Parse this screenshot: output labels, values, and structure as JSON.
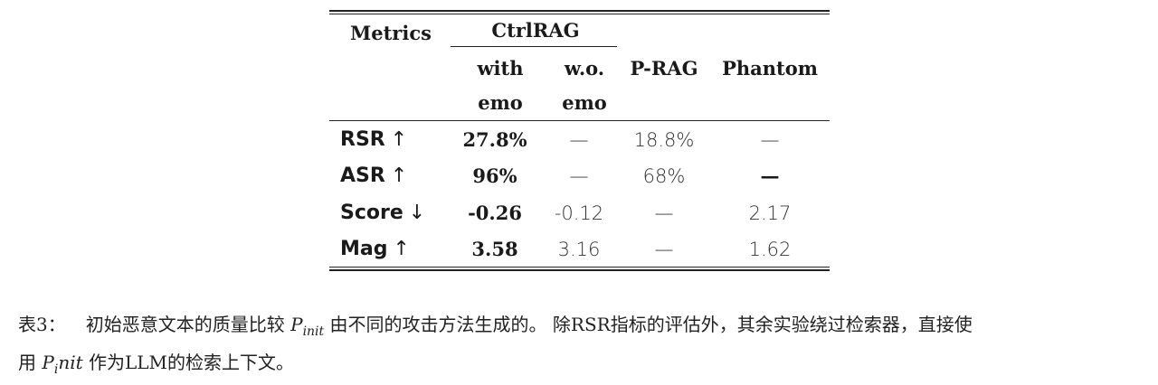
{
  "table": {
    "header": {
      "metrics": "Metrics",
      "ctrlrag": "CtrlRAG",
      "with_line1": "with",
      "with_line2": "emo",
      "wo_line1": "w.o.",
      "wo_line2": "emo",
      "prag": "P-RAG",
      "phantom": "Phantom"
    },
    "rows": [
      {
        "label": "RSR",
        "arrow": "↑",
        "with_emo": "27.8%",
        "wo_emo": "—",
        "prag": "18.8%",
        "phantom": "—"
      },
      {
        "label": "ASR",
        "arrow": "↑",
        "with_emo": "96%",
        "wo_emo": "—",
        "prag": "68%",
        "phantom": "—"
      },
      {
        "label": "Score",
        "arrow": "↓",
        "with_emo": "-0.26",
        "wo_emo": "-0.12",
        "prag": "—",
        "phantom": "2.17"
      },
      {
        "label": "Mag",
        "arrow": "↑",
        "with_emo": "3.58",
        "wo_emo": "3.16",
        "prag": "—",
        "phantom": "1.62"
      }
    ]
  },
  "caption": {
    "label": "表3：",
    "text_a": "初始恶意文本的质量比较",
    "pinit_base": "P",
    "pinit_sub": "init",
    "text_b": "由不同的攻击方法生成的。 除RSR指标的评估外，其余实验绕过检索器，直接使",
    "text_c": "用",
    "pinit2_base": "P",
    "pinit2_sub": "i",
    "pinit2_tail": "nit",
    "text_d": "作为LLM的检索上下文。"
  }
}
